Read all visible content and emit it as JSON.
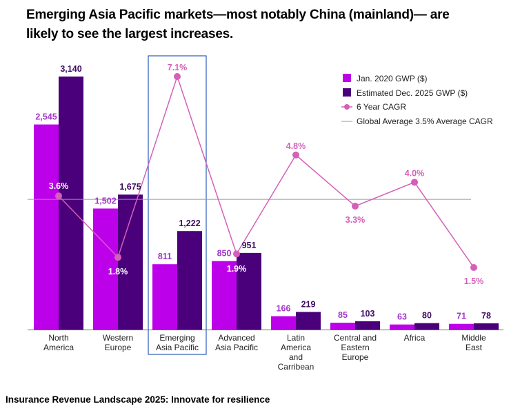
{
  "title": "Emerging Asia Pacific markets—most notably China (mainland)— are likely to see the largest increases.",
  "footer": "Insurance Revenue Landscape 2025: Innovate for resilience",
  "colors": {
    "jan2020": "#bd00ea",
    "dec2025": "#4a007a",
    "cagr": "#d55fb9",
    "global_avg": "#999999",
    "highlight_box": "#2a59b8",
    "label_light": "#a235c9",
    "label_dark": "#3d0d63"
  },
  "chart_data": {
    "type": "bar",
    "categories": [
      [
        "North",
        "America"
      ],
      [
        "Western",
        "Europe"
      ],
      [
        "Emerging",
        "Asia Pacific"
      ],
      [
        "Advanced",
        "Asia Pacific"
      ],
      [
        "Latin",
        "America",
        "and",
        "Carribean"
      ],
      [
        "Central and",
        "Eastern",
        "Europe"
      ],
      [
        "Africa"
      ],
      [
        "Middle",
        "East"
      ]
    ],
    "series": [
      {
        "name": "Jan. 2020 GWP ($)",
        "kind": "bar",
        "values": [
          2545,
          1502,
          811,
          850,
          166,
          85,
          63,
          71
        ],
        "labels": [
          "2,545",
          "1,502",
          "811",
          "850",
          "166",
          "85",
          "63",
          "71"
        ]
      },
      {
        "name": "Estimated Dec. 2025 GWP ($)",
        "kind": "bar",
        "values": [
          3140,
          1675,
          1222,
          951,
          219,
          103,
          80,
          78
        ],
        "labels": [
          "3,140",
          "1,675",
          "1,222",
          "951",
          "219",
          "103",
          "80",
          "78"
        ]
      },
      {
        "name": "6 Year CAGR",
        "kind": "line",
        "values": [
          3.6,
          1.8,
          7.1,
          1.9,
          4.8,
          3.3,
          4.0,
          1.5
        ],
        "labels": [
          "3.6%",
          "1.8%",
          "7.1%",
          "1.9%",
          "4.8%",
          "3.3%",
          "4.0%",
          "1.5%"
        ]
      },
      {
        "name": "Global Average 3.5% Average CAGR",
        "kind": "reference",
        "value": 3.5
      }
    ],
    "bar_axis": {
      "min": 0,
      "max": 3140
    },
    "cagr_axis": {
      "min": 0,
      "max": 7.1
    },
    "highlighted_category": 2,
    "grid": false,
    "legend_position": "top-right"
  }
}
